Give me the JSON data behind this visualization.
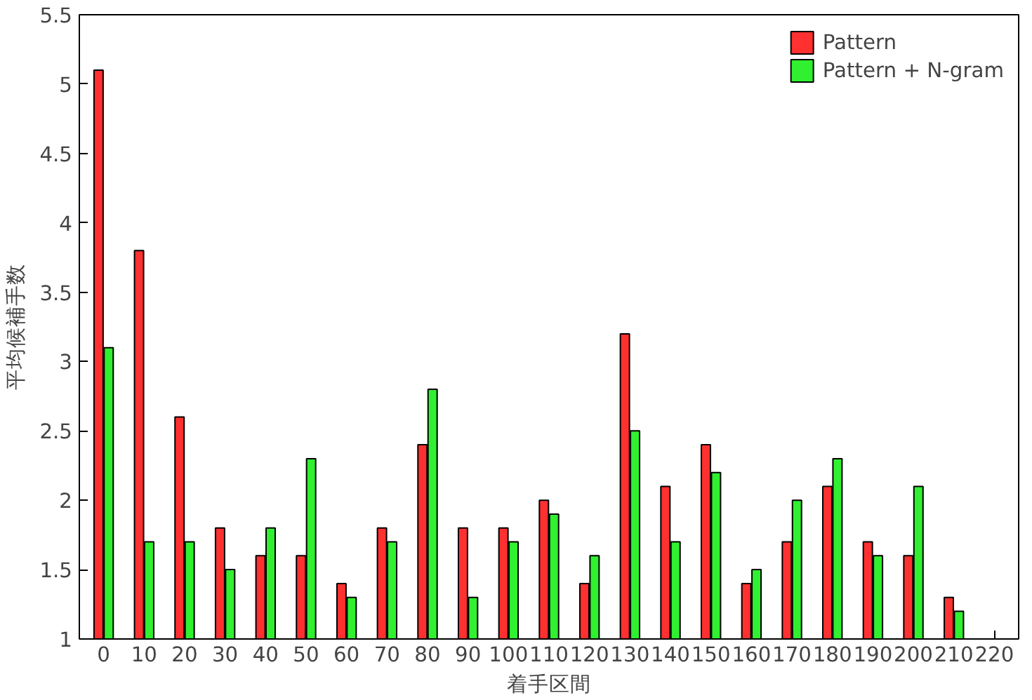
{
  "chart_data": {
    "type": "bar",
    "xlabel": "着手区間",
    "ylabel": "平均候補手数",
    "categories": [
      "0",
      "10",
      "20",
      "30",
      "40",
      "50",
      "60",
      "70",
      "80",
      "90",
      "100",
      "110",
      "120",
      "130",
      "140",
      "150",
      "160",
      "170",
      "180",
      "190",
      "200",
      "210",
      "220"
    ],
    "series": [
      {
        "name": "Pattern",
        "color": "#ff3030",
        "values": [
          5.1,
          3.8,
          2.6,
          1.8,
          1.6,
          1.6,
          1.4,
          1.8,
          2.4,
          1.8,
          1.8,
          2.0,
          1.4,
          3.2,
          2.1,
          2.4,
          1.4,
          1.7,
          2.1,
          1.7,
          1.6,
          1.3,
          null
        ]
      },
      {
        "name": "Pattern + N-gram",
        "color": "#30f030",
        "values": [
          3.1,
          1.7,
          1.7,
          1.5,
          1.8,
          2.3,
          1.3,
          1.7,
          2.8,
          1.3,
          1.7,
          1.9,
          1.6,
          2.5,
          1.7,
          2.2,
          1.5,
          2.0,
          2.3,
          1.6,
          2.1,
          1.2,
          null
        ]
      }
    ],
    "ylim": [
      1,
      5.5
    ],
    "yticks": [
      1,
      1.5,
      2,
      2.5,
      3,
      3.5,
      4,
      4.5,
      5,
      5.5
    ],
    "grid": false,
    "legend": "top right"
  }
}
